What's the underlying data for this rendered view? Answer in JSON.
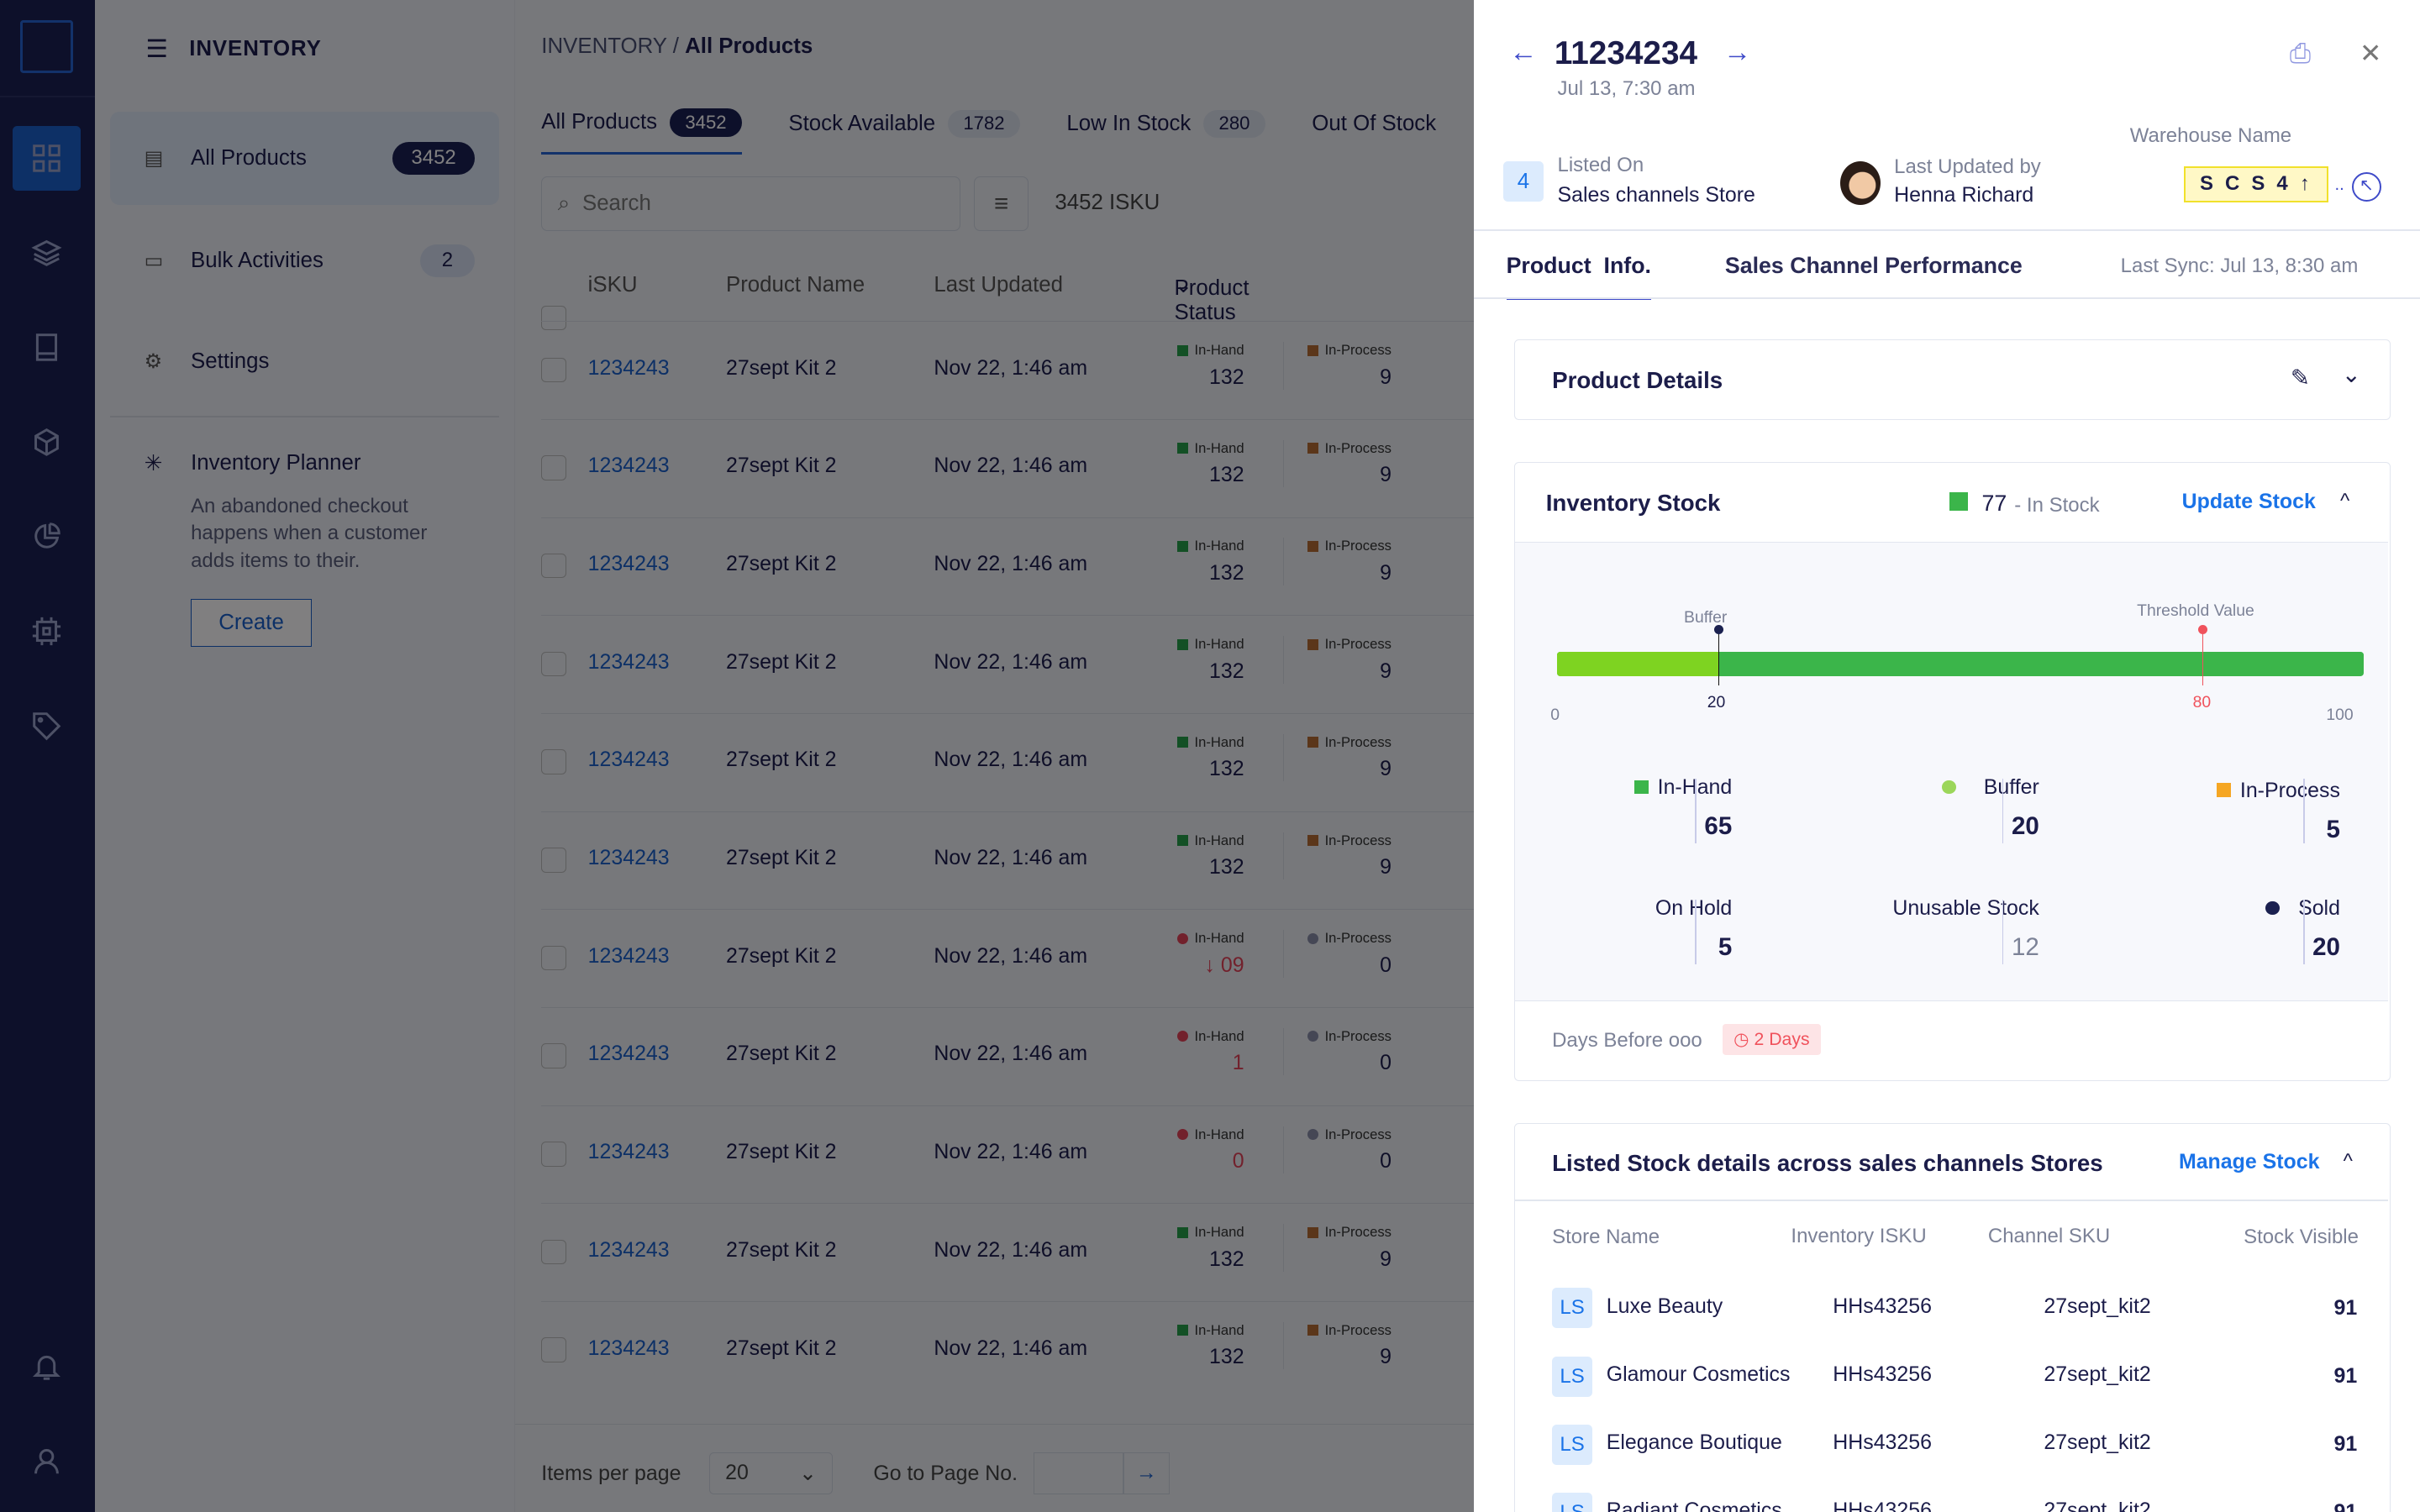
{
  "sidebar": {
    "title": "INVENTORY",
    "items": [
      {
        "label": "All Products",
        "count": "3452"
      },
      {
        "label": "Bulk Activities",
        "count": "2"
      },
      {
        "label": "Settings"
      }
    ],
    "planner": {
      "title": "Inventory Planner",
      "desc": "An abandoned checkout happens when a customer adds items to their.",
      "button": "Create"
    }
  },
  "breadcrumb": {
    "root": "INVENTORY",
    "sep": "/",
    "current": "All Products"
  },
  "tabs": [
    {
      "label": "All Products",
      "count": "3452"
    },
    {
      "label": "Stock Available",
      "count": "1782"
    },
    {
      "label": "Low In Stock",
      "count": "280"
    },
    {
      "label": "Out Of Stock",
      "count": ""
    }
  ],
  "search": {
    "placeholder": "Search",
    "count": "3452 ISKU"
  },
  "table": {
    "headers": [
      "iSKU",
      "Product Name",
      "Last Updated",
      "Product  Status"
    ],
    "rows": [
      {
        "sku": "1234243",
        "name": "27sept Kit 2",
        "updated": "Nov 22, 1:46 am",
        "inhand": "132",
        "inprocess": "9",
        "state": "ok"
      },
      {
        "sku": "1234243",
        "name": "27sept Kit 2",
        "updated": "Nov 22, 1:46 am",
        "inhand": "132",
        "inprocess": "9",
        "state": "ok"
      },
      {
        "sku": "1234243",
        "name": "27sept Kit 2",
        "updated": "Nov 22, 1:46 am",
        "inhand": "132",
        "inprocess": "9",
        "state": "ok"
      },
      {
        "sku": "1234243",
        "name": "27sept Kit 2",
        "updated": "Nov 22, 1:46 am",
        "inhand": "132",
        "inprocess": "9",
        "state": "ok"
      },
      {
        "sku": "1234243",
        "name": "27sept Kit 2",
        "updated": "Nov 22, 1:46 am",
        "inhand": "132",
        "inprocess": "9",
        "state": "ok"
      },
      {
        "sku": "1234243",
        "name": "27sept Kit 2",
        "updated": "Nov 22, 1:46 am",
        "inhand": "132",
        "inprocess": "9",
        "state": "ok"
      },
      {
        "sku": "1234243",
        "name": "27sept Kit 2",
        "updated": "Nov 22, 1:46 am",
        "inhand": "↓ 09",
        "inprocess": "0",
        "state": "low"
      },
      {
        "sku": "1234243",
        "name": "27sept Kit 2",
        "updated": "Nov 22, 1:46 am",
        "inhand": "1",
        "inprocess": "0",
        "state": "low"
      },
      {
        "sku": "1234243",
        "name": "27sept Kit 2",
        "updated": "Nov 22, 1:46 am",
        "inhand": "0",
        "inprocess": "0",
        "state": "low"
      },
      {
        "sku": "1234243",
        "name": "27sept Kit 2",
        "updated": "Nov 22, 1:46 am",
        "inhand": "132",
        "inprocess": "9",
        "state": "ok"
      },
      {
        "sku": "1234243",
        "name": "27sept Kit 2",
        "updated": "Nov 22, 1:46 am",
        "inhand": "132",
        "inprocess": "9",
        "state": "ok"
      }
    ],
    "inhand_label": "In-Hand",
    "inprocess_label": "In-Process"
  },
  "pager": {
    "items_label": "Items per page",
    "items_value": "20",
    "goto_label": "Go to Page No."
  },
  "detail": {
    "id": "11234234",
    "date": "Jul 13, 7:30 am",
    "listed_count": "4",
    "listed_label": "Listed On",
    "listed_value": "Sales channels Store",
    "updated_label": "Last Updated by",
    "updated_value": "Henna Richard",
    "warehouse_label": "Warehouse Name",
    "warehouse_value": "S C S 4 ↑",
    "tabs": [
      "Product  Info.",
      "Sales Channel Performance"
    ],
    "last_sync": "Last Sync: Jul 13, 8:30 am",
    "product_details": "Product Details",
    "inventory": {
      "title": "Inventory Stock",
      "in_stock_value": "77",
      "in_stock_label": "- In Stock",
      "update": "Update Stock",
      "bar": {
        "min": 0,
        "max": 100,
        "buffer": 20,
        "threshold": 80,
        "buffer_label": "Buffer",
        "threshold_label": "Threshold Value",
        "min_label": "0",
        "max_label": "100",
        "buffer_tick": "20",
        "threshold_tick": "80"
      },
      "stats": [
        {
          "label": "In-Hand",
          "value": "65"
        },
        {
          "label": "Buffer",
          "value": "20"
        },
        {
          "label": "In-Process",
          "value": "5"
        },
        {
          "label": "On Hold",
          "value": "5"
        },
        {
          "label": "Unusable Stock",
          "value": "12"
        },
        {
          "label": "Sold",
          "value": "20"
        }
      ],
      "days_label": "Days Before ooo",
      "days_value": "2 Days"
    },
    "listed": {
      "title": "Listed Stock details across sales channels Stores",
      "manage": "Manage Stock",
      "headers": [
        "Store Name",
        "Inventory ISKU",
        "Channel SKU",
        "Stock Visible"
      ],
      "rows": [
        {
          "tag": "LS",
          "store": "Luxe Beauty",
          "isku": "HHs43256",
          "csku": "27sept_kit2",
          "stock": "91"
        },
        {
          "tag": "LS",
          "store": "Glamour Cosmetics",
          "isku": "HHs43256",
          "csku": "27sept_kit2",
          "stock": "91"
        },
        {
          "tag": "LS",
          "store": "Elegance Boutique",
          "isku": "HHs43256",
          "csku": "27sept_kit2",
          "stock": "91"
        },
        {
          "tag": "LS",
          "store": "Radiant Cosmetics",
          "isku": "HHs43256",
          "csku": "27sept_kit2",
          "stock": "91"
        }
      ]
    }
  },
  "colors": {
    "accent": "#1a73e8",
    "navy": "#1b2150",
    "green": "#3bb54a",
    "lime": "#7ed321",
    "red": "#f0525c",
    "orange": "#f5a623"
  }
}
